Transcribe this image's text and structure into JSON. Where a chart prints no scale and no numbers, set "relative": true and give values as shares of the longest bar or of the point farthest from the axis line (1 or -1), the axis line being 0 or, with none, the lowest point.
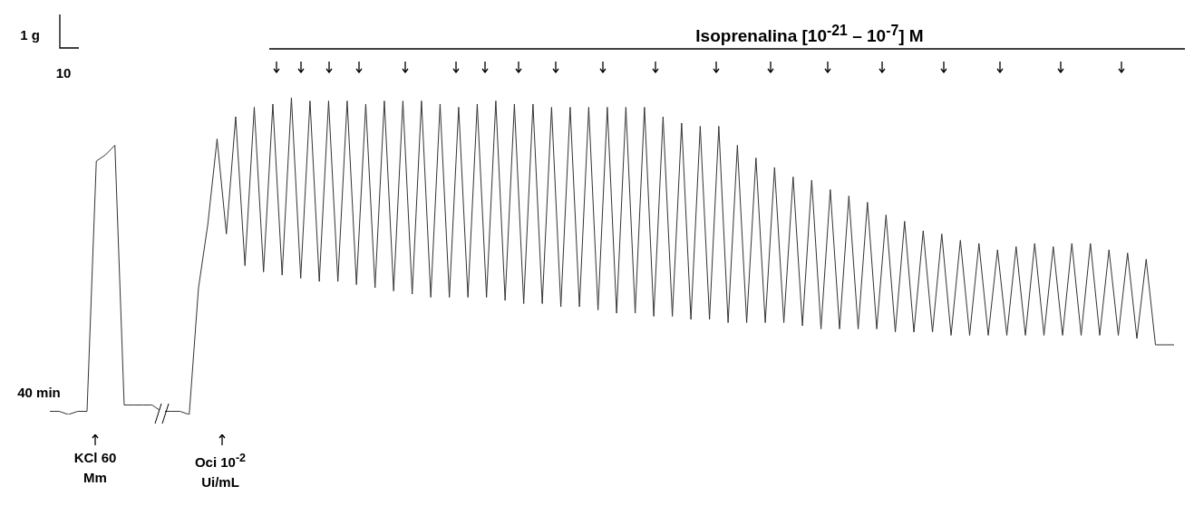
{
  "chart_data": {
    "type": "line",
    "relative": true,
    "title": "Isoprenalina [10$^{-21}$ –  10$^{-7}$] M",
    "annotations": [
      "1 g",
      "10",
      "40 min",
      "KCl 60 Mm",
      "Oci 10$^{-2}$ Ui/mL"
    ],
    "categories": [
      null,
      null,
      null,
      null,
      null,
      null,
      null,
      null,
      null,
      null,
      null,
      null,
      null,
      null,
      null,
      null,
      null,
      null,
      null,
      null,
      null,
      null,
      null,
      null,
      null,
      null,
      null,
      null,
      null,
      null,
      null,
      null,
      null,
      null,
      null,
      null,
      null,
      null,
      null,
      null,
      null,
      null,
      null,
      null,
      null,
      null,
      null,
      null,
      null,
      null,
      null,
      null,
      null,
      null,
      null,
      null,
      null,
      null,
      null,
      null,
      null,
      null,
      null,
      null,
      null,
      null,
      null,
      null,
      null,
      null,
      null,
      null,
      null,
      null,
      null,
      null,
      null,
      null,
      null,
      null,
      null,
      null,
      null,
      null,
      null,
      null,
      null,
      null,
      null,
      null,
      null,
      null,
      null,
      null,
      null,
      null,
      null,
      null,
      null,
      null,
      null,
      null,
      null,
      null,
      null,
      null,
      null,
      null,
      null,
      null,
      null,
      null,
      null,
      null,
      null,
      null,
      null,
      null,
      null,
      null,
      null,
      null
    ],
    "series": [
      {
        "color": "#333333",
        "values": [
          0.01,
          0.01,
          0,
          0.01,
          0.01,
          0.8,
          0.82,
          0.85,
          0.03,
          0.03,
          0.03,
          0.03,
          0.01,
          0.01,
          0.01,
          0,
          0.4,
          0.6,
          0.87,
          0.57,
          0.94,
          0.47,
          0.97,
          0.45,
          0.98,
          0.44,
          1,
          0.43,
          0.99,
          0.42,
          0.99,
          0.42,
          0.99,
          0.41,
          0.98,
          0.4,
          0.99,
          0.39,
          0.99,
          0.38,
          0.99,
          0.37,
          0.98,
          0.37,
          0.97,
          0.37,
          0.98,
          0.37,
          0.99,
          0.36,
          0.98,
          0.35,
          0.98,
          0.35,
          0.97,
          0.34,
          0.97,
          0.34,
          0.97,
          0.33,
          0.97,
          0.32,
          0.97,
          0.32,
          0.97,
          0.31,
          0.94,
          0.31,
          0.92,
          0.3,
          0.91,
          0.3,
          0.91,
          0.29,
          0.85,
          0.29,
          0.81,
          0.29,
          0.78,
          0.29,
          0.75,
          0.28,
          0.74,
          0.27,
          0.71,
          0.27,
          0.69,
          0.27,
          0.67,
          0.27,
          0.63,
          0.26,
          0.61,
          0.26,
          0.58,
          0.26,
          0.57,
          0.25,
          0.55,
          0.25,
          0.54,
          0.25,
          0.52,
          0.25,
          0.53,
          0.25,
          0.54,
          0.25,
          0.53,
          0.25,
          0.54,
          0.25,
          0.54,
          0.25,
          0.52,
          0.25,
          0.51,
          0.24,
          0.49,
          0.22,
          0.22,
          0.22
        ]
      }
    ]
  }
}
